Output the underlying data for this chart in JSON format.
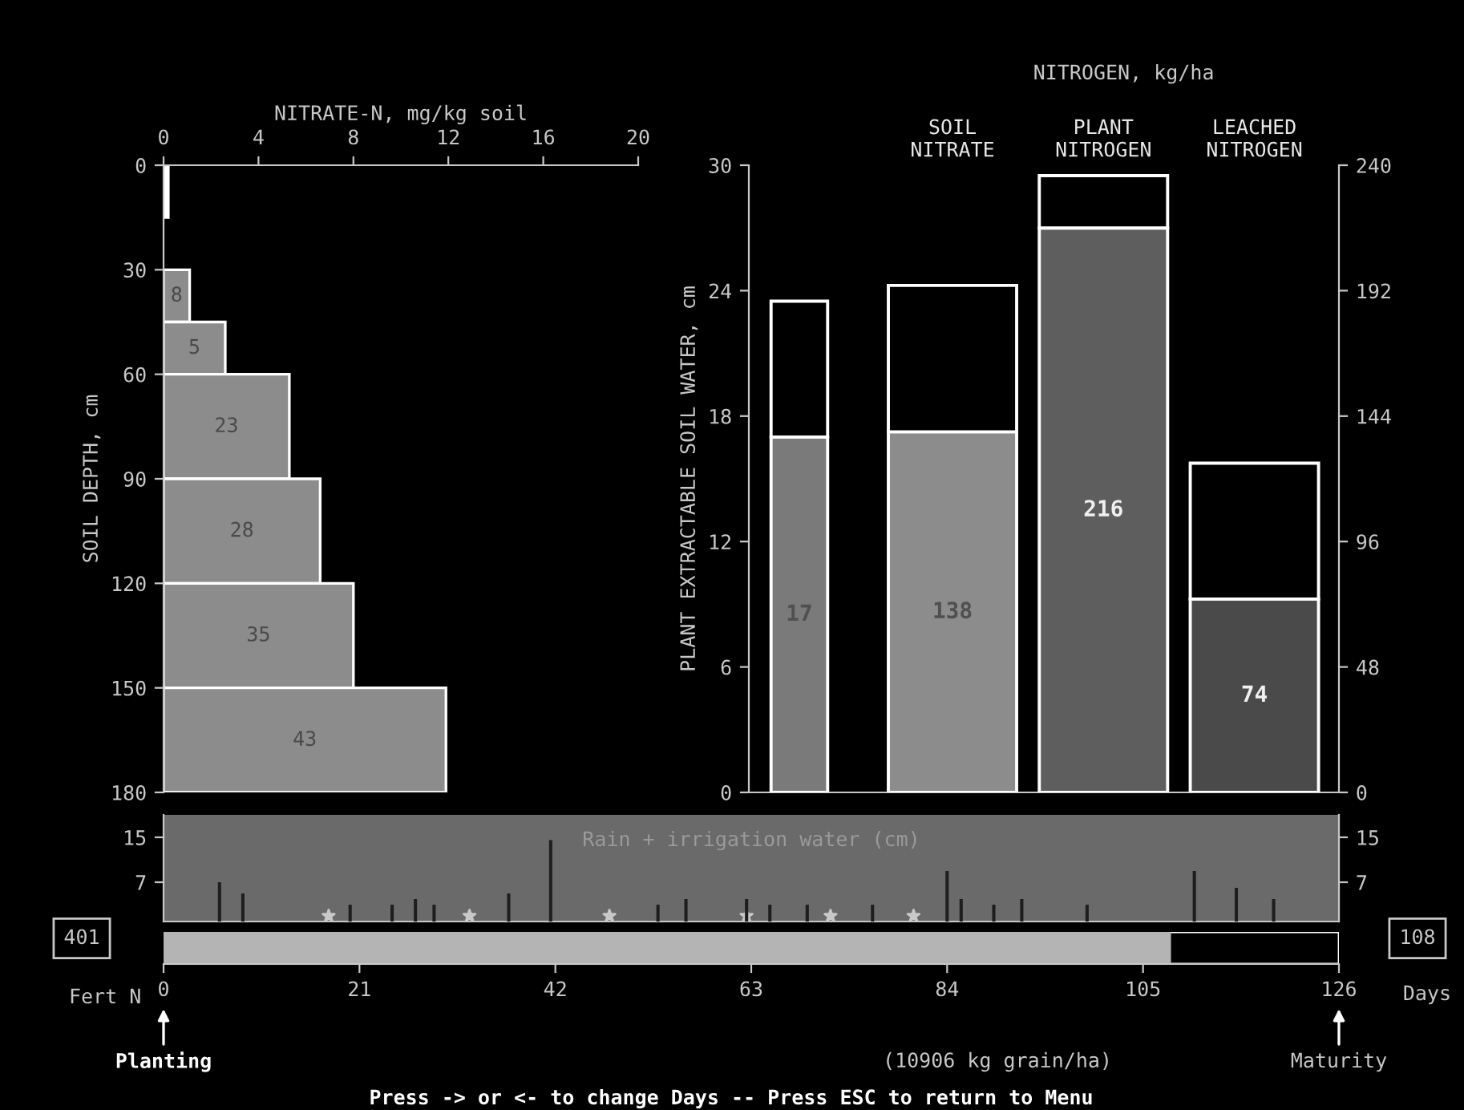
{
  "chart_data": [
    {
      "type": "histogram",
      "orientation": "horizontal",
      "xlabel": "NITRATE-N, mg/kg soil",
      "ylabel": "SOIL DEPTH, cm",
      "bins": [
        0,
        15,
        30,
        45,
        60,
        90,
        120,
        150,
        180
      ],
      "values": [
        0.2,
        0,
        1.1,
        2.6,
        5.3,
        6.6,
        8.0,
        11.9
      ],
      "colors": [
        "#ffffff",
        "#8c8c8c",
        "#8c8c8c",
        "#8c8c8c",
        "#8c8c8c",
        "#8c8c8c",
        "#8c8c8c",
        "#8c8c8c"
      ],
      "xlim": [
        0,
        20
      ],
      "xticks": [
        0,
        4,
        8,
        12,
        16,
        20
      ],
      "ylim": [
        180,
        0
      ],
      "yticks": [
        0,
        30,
        60,
        90,
        120,
        150,
        180
      ],
      "annotations": [
        "8",
        "5",
        "23",
        "28",
        "35",
        "43"
      ]
    },
    {
      "type": "bar",
      "stacked": true,
      "ylabel": "PLANT EXTRACTABLE SOIL WATER, cm",
      "categories": [
        null
      ],
      "series": [
        {
          "values": [
            17
          ],
          "color": "#7a7a7a",
          "value_labels": [
            "17"
          ]
        },
        {
          "values": [
            6.5
          ],
          "color": "#000000"
        }
      ],
      "ylim": [
        0,
        30
      ],
      "yticks": [
        0,
        6,
        12,
        18,
        24,
        30
      ]
    },
    {
      "type": "bar",
      "stacked": true,
      "ylabel": "NITROGEN, kg/ha",
      "categories": [
        "SOIL NITRATE",
        "PLANT NITROGEN",
        "LEACHED NITROGEN"
      ],
      "series": [
        {
          "colors": [
            "#8c8c8c",
            "#5e5e5e",
            "#4a4a4a"
          ],
          "values": [
            138,
            216,
            74
          ],
          "value_labels": [
            "138",
            "216",
            "74"
          ]
        },
        {
          "values": [
            56,
            20,
            52
          ],
          "color": "#000000"
        }
      ],
      "ylim": [
        0,
        240
      ],
      "yticks": [
        0,
        48,
        96,
        144,
        192,
        240
      ]
    },
    {
      "type": "bar",
      "title": "Rain + irrigation water (cm)",
      "x": [
        6,
        8.5,
        20,
        24.5,
        27,
        29,
        37,
        41.5,
        53,
        56,
        62.5,
        65,
        69,
        76,
        84,
        85.5,
        89,
        92,
        99,
        110.5,
        115,
        119
      ],
      "series": [
        {
          "values": [
            7,
            5,
            3,
            3,
            4,
            3,
            5,
            14.5,
            3,
            4,
            4,
            3,
            3,
            3,
            9,
            4,
            3,
            4,
            3,
            9,
            6,
            4
          ],
          "color": "#1e1e1e"
        },
        {
          "type": "scatter",
          "x": [
            17.7,
            32.8,
            47.8,
            62.5,
            71.5,
            80.4
          ],
          "values": [
            1,
            1,
            1,
            1,
            1,
            1
          ],
          "color": "#c8c8c8",
          "marker": "star"
        }
      ],
      "xlim": [
        0,
        126
      ],
      "ylim": [
        0,
        19
      ],
      "yticks": [
        7,
        15
      ],
      "y2lim": [
        0,
        19
      ],
      "y2ticks": [
        7,
        15
      ],
      "tick_labels": "y"
    },
    {
      "type": "bar",
      "orientation": "horizontal",
      "categories": [
        null
      ],
      "values": [
        108
      ],
      "color": "#b4b4b4",
      "xlabel": "Days",
      "xlim": [
        0,
        126
      ],
      "xticks": [
        0,
        21,
        42,
        63,
        84,
        105,
        126
      ],
      "tick_labels": "x",
      "annotations": [
        "Fert N",
        "401",
        "108",
        "Planting",
        "Maturity",
        "(10906 kg grain/ha)",
        "Press -> or <- to change Days -- Press ESC to return to Menu"
      ]
    }
  ]
}
